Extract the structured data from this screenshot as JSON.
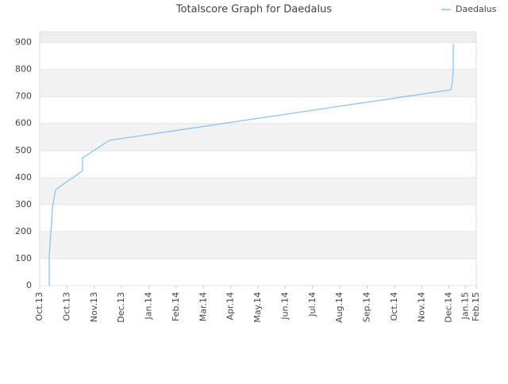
{
  "chart_data": {
    "type": "line",
    "title": "Totalscore Graph for Daedalus",
    "x": [
      0.35,
      0.35,
      0.47,
      0.58,
      1.57,
      1.57,
      2.56,
      15.07,
      15.13,
      15.16,
      15.16
    ],
    "series": [
      {
        "name": "Daedalus",
        "color": "#8ec3ef",
        "values": [
          0,
          110,
          290,
          355,
          425,
          473,
          538,
          725,
          760,
          820,
          895
        ]
      }
    ],
    "xlim": [
      0,
      16
    ],
    "ylim": [
      0,
      940
    ],
    "xticks": [
      {
        "value": 0,
        "label": "Oct.13"
      },
      {
        "value": 1,
        "label": "Oct.13"
      },
      {
        "value": 2,
        "label": "Nov.13"
      },
      {
        "value": 3,
        "label": "Dec.13"
      },
      {
        "value": 4,
        "label": "Jan.14"
      },
      {
        "value": 5,
        "label": "Feb.14"
      },
      {
        "value": 6,
        "label": "Mar.14"
      },
      {
        "value": 7,
        "label": "Apr.14"
      },
      {
        "value": 8,
        "label": "May.14"
      },
      {
        "value": 9,
        "label": "Jun.14"
      },
      {
        "value": 10,
        "label": "Jul.14"
      },
      {
        "value": 11,
        "label": "Aug.14"
      },
      {
        "value": 12,
        "label": "Sep.14"
      },
      {
        "value": 13,
        "label": "Oct.14"
      },
      {
        "value": 14,
        "label": "Nov.14"
      },
      {
        "value": 15,
        "label": "Dec.14"
      },
      {
        "value": 15.6,
        "label": "Jan.15"
      },
      {
        "value": 16,
        "label": "Feb.15"
      }
    ],
    "yticks": [
      0,
      100,
      200,
      300,
      400,
      500,
      600,
      700,
      800,
      900
    ],
    "grid": true,
    "legend": "top-right"
  }
}
